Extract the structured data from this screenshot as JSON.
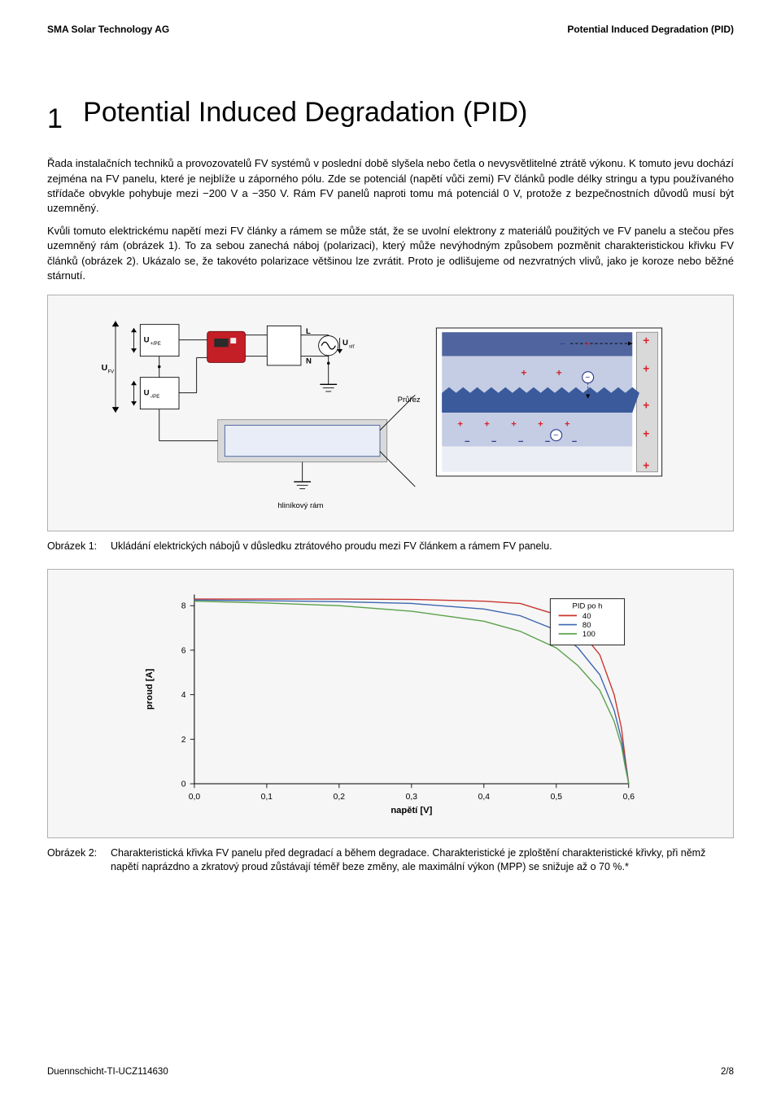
{
  "header": {
    "left": "SMA Solar Technology AG",
    "right": "Potential Induced Degradation (PID)"
  },
  "section": {
    "number": "1",
    "title": "Potential Induced Degradation (PID)"
  },
  "body": {
    "p1": "Řada instalačních techniků a provozovatelů FV systémů v poslední době slyšela nebo četla o nevysvětlitelné ztrátě výkonu. K tomuto jevu dochází zejména na FV panelu, které je nejblíže u záporného pólu. Zde se potenciál (napětí vůči zemi) FV článků podle délky stringu a typu používaného střídače obvykle pohybuje mezi −200 V a −350 V. Rám FV panelů naproti tomu má potenciál 0 V, protože z bezpečnostních důvodů musí být uzemněný.",
    "p2": "Kvůli tomuto elektrickému napětí mezi FV články a rámem se může stát, že se uvolní elektrony z materiálů použitých ve FV panelu a stečou přes uzemněný rám (obrázek 1). To za sebou zanechá náboj (polarizaci), který může nevýhodným způsobem pozměnit charakteristickou křivku FV článků (obrázek 2). Ukázalo se, že takovéto polarizace většinou lze zvrátit. Proto je odlišujeme od nezvratných vlivů, jako je koroze nebo běžné stárnutí."
  },
  "figure1": {
    "labels": {
      "U_FV": "U",
      "U_FV_sub": "FV",
      "U_pPE": "U",
      "U_pPE_sub": "+/PE",
      "U_nPE": "U",
      "U_nPE_sub": "-/PE",
      "L": "L",
      "N": "N",
      "U_grid": "U",
      "U_grid_sub": "síť",
      "cross_section": "Průřez",
      "frame": "hliníkový rám"
    },
    "colors": {
      "outline": "#000000",
      "arrow": "#000000",
      "inverter_body": "#c41e26",
      "inverter_dark": "#2b2b2b",
      "wire": "#000000",
      "frame_fill": "#d9d9d9",
      "frame_stroke": "#8a8a8a",
      "glass_top": "#50659f",
      "eva_layer": "#c4cde3",
      "cell_layer": "#3a5a9c",
      "back_layer": "#eceef5",
      "positive": "#d8232a",
      "negative": "#2d3a8c",
      "panel_bg": "#e9edf7"
    },
    "caption_label": "Obrázek 1:",
    "caption_text": "Ukládání elektrických nábojů v důsledku ztrátového proudu mezi FV článkem a rámem FV panelu."
  },
  "figure2": {
    "chart": {
      "type": "line",
      "title": null,
      "xlabel": "napětí [V]",
      "ylabel": "proud [A]",
      "xlim": [
        0.0,
        0.6
      ],
      "ylim": [
        0,
        8.5
      ],
      "xticks": [
        0.0,
        0.1,
        0.2,
        0.3,
        0.4,
        0.5,
        0.6
      ],
      "xtick_labels": [
        "0,0",
        "0,1",
        "0,2",
        "0,3",
        "0,4",
        "0,5",
        "0,6"
      ],
      "yticks": [
        0,
        2,
        4,
        6,
        8
      ],
      "legend_title": "PID po h",
      "series": [
        {
          "name": "40",
          "color": "#c9352e",
          "x": [
            0.0,
            0.1,
            0.2,
            0.3,
            0.4,
            0.45,
            0.5,
            0.53,
            0.56,
            0.58,
            0.59,
            0.595,
            0.6
          ],
          "y": [
            8.3,
            8.3,
            8.3,
            8.28,
            8.2,
            8.1,
            7.6,
            7.0,
            5.8,
            4.0,
            2.5,
            1.2,
            0.0
          ]
        },
        {
          "name": "80",
          "color": "#3d66b0",
          "x": [
            0.0,
            0.1,
            0.2,
            0.3,
            0.4,
            0.45,
            0.5,
            0.53,
            0.56,
            0.58,
            0.59,
            0.595,
            0.6
          ],
          "y": [
            8.25,
            8.22,
            8.18,
            8.1,
            7.85,
            7.55,
            6.9,
            6.1,
            4.9,
            3.3,
            2.0,
            1.0,
            0.0
          ]
        },
        {
          "name": "100",
          "color": "#5aa14a",
          "x": [
            0.0,
            0.1,
            0.2,
            0.3,
            0.4,
            0.45,
            0.5,
            0.53,
            0.56,
            0.58,
            0.59,
            0.595,
            0.6
          ],
          "y": [
            8.2,
            8.12,
            8.0,
            7.75,
            7.3,
            6.85,
            6.1,
            5.3,
            4.2,
            2.8,
            1.7,
            0.8,
            0.0
          ]
        }
      ],
      "axis_color": "#000000",
      "legend_border": "#000000",
      "label_fontsize": 13,
      "tick_fontsize": 12,
      "line_width": 1.6,
      "background_color": "#f6f6f6"
    },
    "caption_label": "Obrázek 2:",
    "caption_text": "Charakteristická křivka FV panelu před degradací a během degradace. Charakteristické je zploštění charakteristické křivky, při němž napětí naprázdno a zkratový proud zůstávají téměř beze změny, ale maximální výkon (MPP) se snižuje až o 70 %.*"
  },
  "footer": {
    "left": "Duennschicht-TI-UCZ114630",
    "right": "2/8"
  }
}
